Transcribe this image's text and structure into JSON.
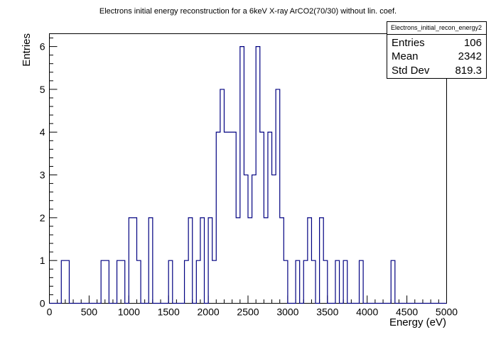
{
  "chart_data": {
    "type": "histogram",
    "title": "Electrons initial energy reconstruction for a 6keV X-ray ArCO2(70/30) without lin. coef.",
    "xlabel": "Energy (eV)",
    "ylabel": "Entries",
    "xlim": [
      0,
      5000
    ],
    "ylim": [
      0,
      6.3
    ],
    "x_ticks": [
      "0",
      "500",
      "1000",
      "1500",
      "2000",
      "2500",
      "3000",
      "3500",
      "4000",
      "4500",
      "5000"
    ],
    "y_ticks": [
      "0",
      "1",
      "2",
      "3",
      "4",
      "5",
      "6"
    ],
    "bin_width": 50,
    "line_color": "#000080",
    "bins": [
      {
        "x": 150,
        "count": 1
      },
      {
        "x": 200,
        "count": 1
      },
      {
        "x": 650,
        "count": 1
      },
      {
        "x": 700,
        "count": 1
      },
      {
        "x": 850,
        "count": 1
      },
      {
        "x": 900,
        "count": 1
      },
      {
        "x": 1000,
        "count": 2
      },
      {
        "x": 1050,
        "count": 2
      },
      {
        "x": 1100,
        "count": 1
      },
      {
        "x": 1250,
        "count": 2
      },
      {
        "x": 1500,
        "count": 1
      },
      {
        "x": 1700,
        "count": 1
      },
      {
        "x": 1750,
        "count": 2
      },
      {
        "x": 1850,
        "count": 1
      },
      {
        "x": 1900,
        "count": 2
      },
      {
        "x": 2000,
        "count": 2
      },
      {
        "x": 2050,
        "count": 1
      },
      {
        "x": 2100,
        "count": 4
      },
      {
        "x": 2150,
        "count": 5
      },
      {
        "x": 2200,
        "count": 4
      },
      {
        "x": 2250,
        "count": 4
      },
      {
        "x": 2300,
        "count": 4
      },
      {
        "x": 2350,
        "count": 2
      },
      {
        "x": 2400,
        "count": 6
      },
      {
        "x": 2450,
        "count": 3
      },
      {
        "x": 2500,
        "count": 2
      },
      {
        "x": 2550,
        "count": 3
      },
      {
        "x": 2600,
        "count": 6
      },
      {
        "x": 2650,
        "count": 4
      },
      {
        "x": 2700,
        "count": 2
      },
      {
        "x": 2750,
        "count": 4
      },
      {
        "x": 2800,
        "count": 3
      },
      {
        "x": 2850,
        "count": 5
      },
      {
        "x": 2900,
        "count": 2
      },
      {
        "x": 2950,
        "count": 1
      },
      {
        "x": 3100,
        "count": 1
      },
      {
        "x": 3200,
        "count": 1
      },
      {
        "x": 3250,
        "count": 2
      },
      {
        "x": 3300,
        "count": 1
      },
      {
        "x": 3400,
        "count": 2
      },
      {
        "x": 3450,
        "count": 1
      },
      {
        "x": 3600,
        "count": 1
      },
      {
        "x": 3700,
        "count": 1
      },
      {
        "x": 3900,
        "count": 1
      },
      {
        "x": 4300,
        "count": 1
      }
    ],
    "stats": {
      "name": "Electrons_initial_recon_energy2",
      "rows": [
        {
          "label": "Entries",
          "value": "106"
        },
        {
          "label": "Mean",
          "value": "2342"
        },
        {
          "label": "Std Dev",
          "value": "819.3"
        }
      ]
    }
  }
}
